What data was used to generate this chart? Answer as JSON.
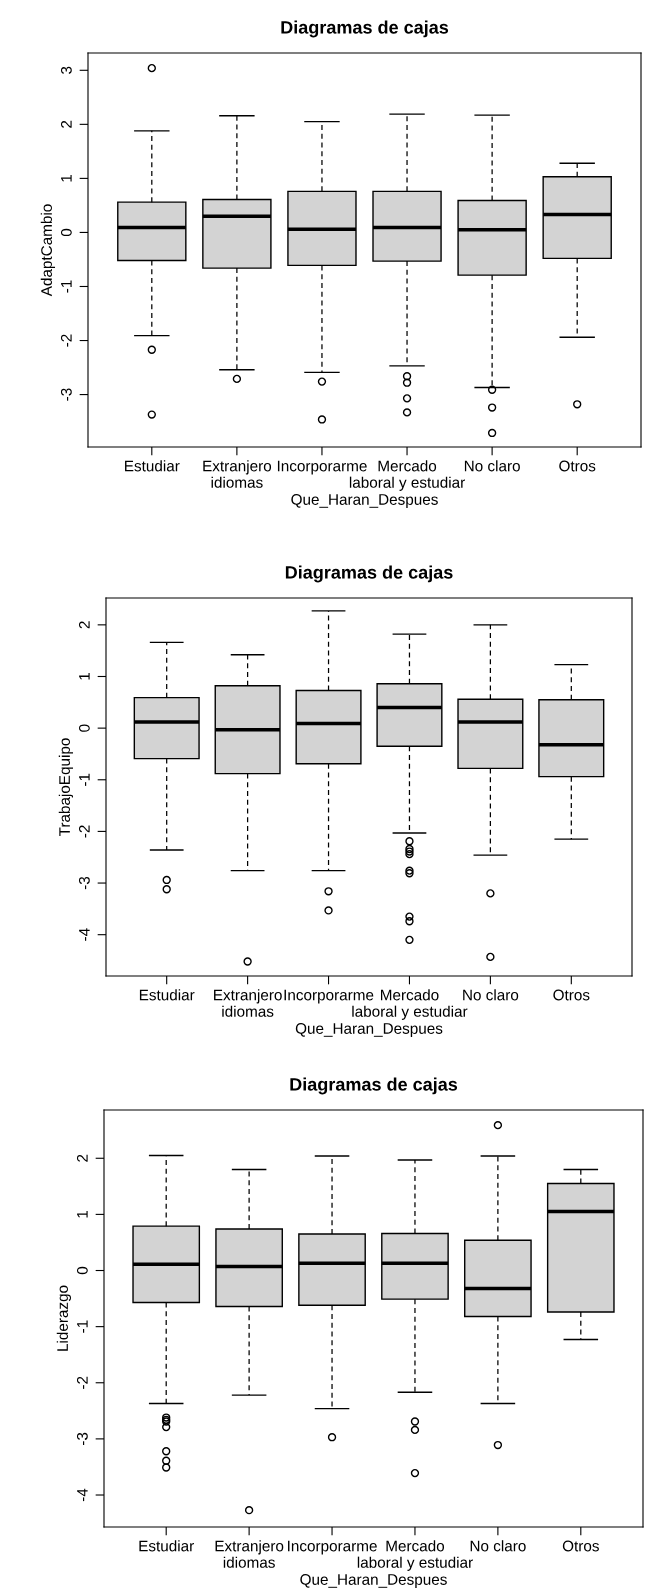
{
  "chart_data": [
    {
      "type": "box",
      "title": "Diagramas de cajas",
      "xlabel": "Que_Haran_Despues",
      "ylabel": "AdaptCambio",
      "categories": [
        "Estudiar",
        "Extranjero\nidiomas",
        "Incorporarme",
        "Mercado\nlaboral y estudiar",
        "No claro",
        "Otros"
      ],
      "ylim": [
        -3.97,
        3.32
      ],
      "yticks": [
        -3,
        -2,
        -1,
        0,
        1,
        2,
        3
      ],
      "grid": false,
      "boxes": [
        {
          "low": -1.91,
          "q1": -0.52,
          "median": 0.09,
          "q3": 0.56,
          "high": 1.88,
          "outliers": [
            3.04,
            -2.17,
            -3.37
          ]
        },
        {
          "low": -2.54,
          "q1": -0.66,
          "median": 0.3,
          "q3": 0.61,
          "high": 2.16,
          "outliers": [
            -2.71
          ]
        },
        {
          "low": -2.59,
          "q1": -0.61,
          "median": 0.06,
          "q3": 0.76,
          "high": 2.05,
          "outliers": [
            -2.76,
            -3.46
          ]
        },
        {
          "low": -2.47,
          "q1": -0.53,
          "median": 0.09,
          "q3": 0.76,
          "high": 2.19,
          "outliers": [
            -2.66,
            -2.78,
            -3.07,
            -3.33
          ]
        },
        {
          "low": -2.87,
          "q1": -0.79,
          "median": 0.05,
          "q3": 0.59,
          "high": 2.17,
          "outliers": [
            -2.91,
            -3.24,
            -3.71
          ]
        },
        {
          "low": -1.94,
          "q1": -0.48,
          "median": 0.33,
          "q3": 1.03,
          "high": 1.28,
          "outliers": [
            -3.18
          ]
        }
      ]
    },
    {
      "type": "box",
      "title": "Diagramas de cajas",
      "xlabel": "Que_Haran_Despues",
      "ylabel": "TrabajoEquipo",
      "categories": [
        "Estudiar",
        "Extranjero\nidiomas",
        "Incorporarme",
        "Mercado\nlaboral y estudiar",
        "No claro",
        "Otros"
      ],
      "ylim": [
        -4.8,
        2.52
      ],
      "yticks": [
        -4,
        -3,
        -2,
        -1,
        0,
        1,
        2
      ],
      "grid": false,
      "boxes": [
        {
          "low": -2.36,
          "q1": -0.59,
          "median": 0.12,
          "q3": 0.59,
          "high": 1.66,
          "outliers": [
            -2.94,
            -3.12
          ]
        },
        {
          "low": -2.76,
          "q1": -0.88,
          "median": -0.03,
          "q3": 0.82,
          "high": 1.42,
          "outliers": [
            -4.52
          ]
        },
        {
          "low": -2.76,
          "q1": -0.69,
          "median": 0.09,
          "q3": 0.73,
          "high": 2.27,
          "outliers": [
            -3.16,
            -3.53
          ]
        },
        {
          "low": -2.03,
          "q1": -0.35,
          "median": 0.4,
          "q3": 0.86,
          "high": 1.82,
          "outliers": [
            -2.19,
            -2.34,
            -2.39,
            -2.44,
            -2.76,
            -2.81,
            -3.65,
            -3.74,
            -4.1
          ]
        },
        {
          "low": -2.46,
          "q1": -0.78,
          "median": 0.12,
          "q3": 0.56,
          "high": 2.0,
          "outliers": [
            -3.2,
            -4.43
          ]
        },
        {
          "low": -2.15,
          "q1": -0.94,
          "median": -0.32,
          "q3": 0.55,
          "high": 1.23
        }
      ]
    },
    {
      "type": "box",
      "title": "Diagramas de cajas",
      "xlabel": "Que_Haran_Despues",
      "ylabel": "Liderazgo",
      "categories": [
        "Estudiar",
        "Extranjero\nidiomas",
        "Incorporarme",
        "Mercado\nlaboral y estudiar",
        "No claro",
        "Otros"
      ],
      "ylim": [
        -4.57,
        2.86
      ],
      "yticks": [
        -4,
        -3,
        -2,
        -1,
        0,
        1,
        2
      ],
      "grid": false,
      "boxes": [
        {
          "low": -2.37,
          "q1": -0.57,
          "median": 0.11,
          "q3": 0.79,
          "high": 2.05,
          "outliers": [
            -2.62,
            -2.66,
            -2.69,
            -2.79,
            -3.22,
            -3.39,
            -3.51
          ]
        },
        {
          "low": -2.22,
          "q1": -0.64,
          "median": 0.07,
          "q3": 0.74,
          "high": 1.8,
          "outliers": [
            -4.27
          ]
        },
        {
          "low": -2.46,
          "q1": -0.62,
          "median": 0.13,
          "q3": 0.65,
          "high": 2.04,
          "outliers": [
            -2.97
          ]
        },
        {
          "low": -2.17,
          "q1": -0.51,
          "median": 0.13,
          "q3": 0.66,
          "high": 1.97,
          "outliers": [
            -2.69,
            -2.84,
            -3.61
          ]
        },
        {
          "low": -2.37,
          "q1": -0.82,
          "median": -0.32,
          "q3": 0.54,
          "high": 2.04,
          "outliers": [
            2.59,
            -3.11
          ]
        },
        {
          "low": -1.23,
          "q1": -0.74,
          "median": 1.05,
          "q3": 1.55,
          "high": 1.8
        }
      ]
    }
  ]
}
